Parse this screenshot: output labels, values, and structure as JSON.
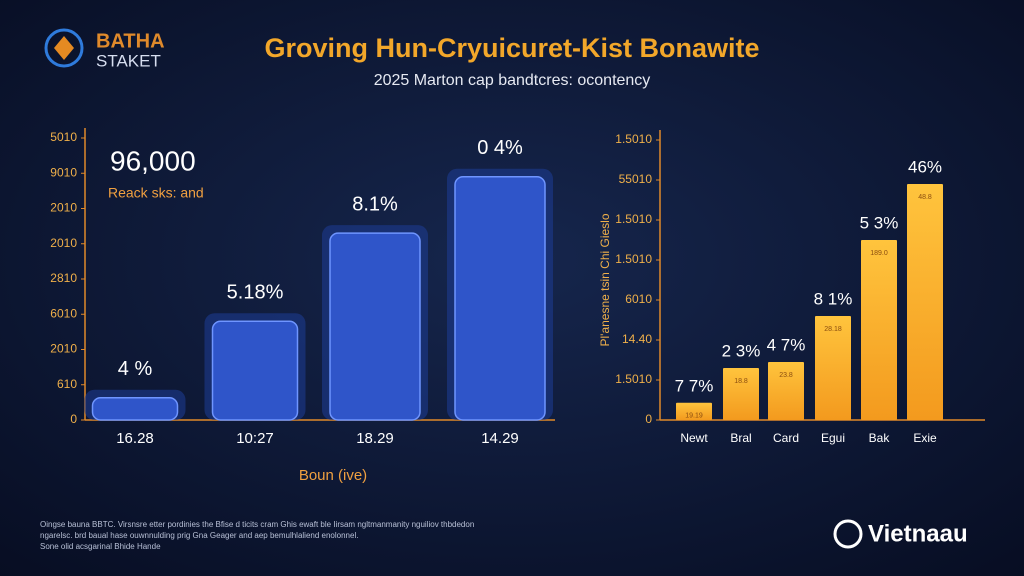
{
  "header": {
    "logo_line1": "BATHA",
    "logo_line2": "STAKET",
    "title": "Groving Hun-Cryuicuret-Kist Bonawite",
    "subtitle": "2025 Marton cap bandtcres: ocontency"
  },
  "chart_data": [
    {
      "type": "bar",
      "annotation": "96,000",
      "annotation_note": "Reack sks: and",
      "x_label": "Boun (ive)",
      "categories": [
        "16.28",
        "10:27",
        "18.29",
        "14.29"
      ],
      "values": [
        0.63,
        2.8,
        5.3,
        6.9
      ],
      "value_labels": [
        "4 %",
        "5.18%",
        "8.1%",
        "0 4%"
      ],
      "color": "#2f55c9",
      "ylim": [
        0,
        8
      ],
      "yticks": [
        {
          "value": 0,
          "label": "0"
        },
        {
          "value": 1,
          "label": "610"
        },
        {
          "value": 2,
          "label": "2010"
        },
        {
          "value": 3,
          "label": "6010"
        },
        {
          "value": 4,
          "label": "2810"
        },
        {
          "value": 5,
          "label": "2010"
        },
        {
          "value": 6,
          "label": "2010"
        },
        {
          "value": 7,
          "label": "9010"
        },
        {
          "value": 8,
          "label": "5010"
        }
      ]
    },
    {
      "type": "bar",
      "y_label": "Pl'anesne tsin Chi Gieslo",
      "categories": [
        "Newt",
        "Bral",
        "Card",
        "Egui",
        "Bak",
        "Exie"
      ],
      "values": [
        0.43,
        1.3,
        1.45,
        2.6,
        4.5,
        5.9
      ],
      "value_labels": [
        "7 7%",
        "2 3%",
        "4 7%",
        "8 1%",
        "5 3%",
        "46%"
      ],
      "inner_labels": [
        "19.19",
        "18.8",
        "23.8",
        "28.18",
        "189.0",
        "48.8"
      ],
      "color": "#f7a928",
      "ylim": [
        0,
        7
      ],
      "yticks": [
        {
          "value": 0,
          "label": "0"
        },
        {
          "value": 1,
          "label": "1.5010"
        },
        {
          "value": 2,
          "label": "14.40"
        },
        {
          "value": 3,
          "label": "6010"
        },
        {
          "value": 4,
          "label": "1.5010"
        },
        {
          "value": 5,
          "label": "1.5010"
        },
        {
          "value": 6,
          "label": "55010"
        },
        {
          "value": 7,
          "label": "1.5010"
        }
      ]
    }
  ],
  "footer": {
    "note_line1": "Oingse bauna BBTC. Virsnsre etter pordinies the Bfise d ticits cram Ghis ewaft ble Iirsam ngltmanmanity nguiliov thbdedon",
    "note_line2": "ngarelsc. brd baual hase ouwnnulding prig Gna Geager and aep bemulhlaliend enolonnel.",
    "note_line3": "Sone olid acsgarinal Bhide Hande",
    "brand": "Vietnaau"
  }
}
